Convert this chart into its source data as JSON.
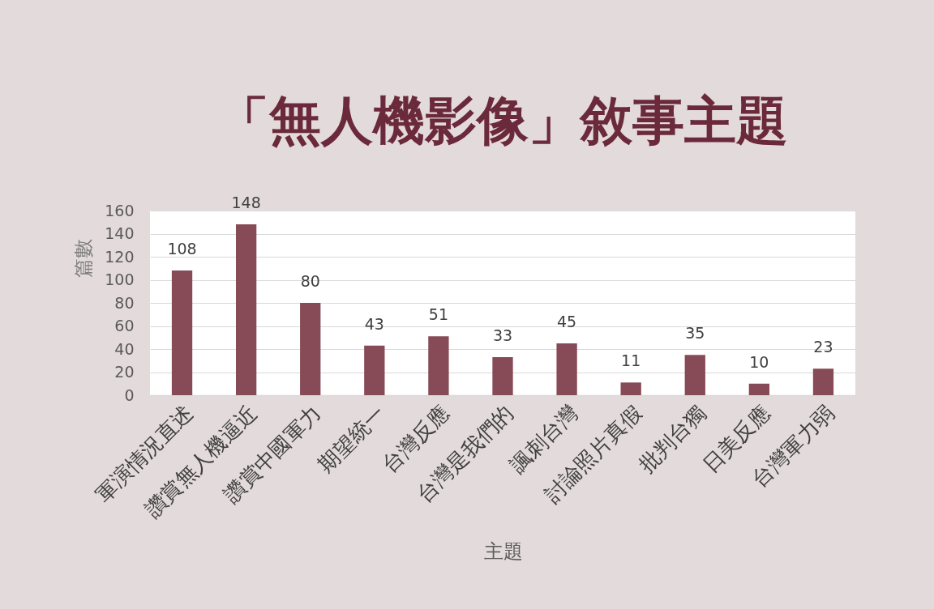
{
  "chart_data": {
    "type": "bar",
    "title": "「無人機影像」敘事主題",
    "xlabel": "主題",
    "ylabel": "篇數",
    "categories": [
      "軍演情況直述",
      "讚賞無人機逼近",
      "讚賞中國軍力",
      "期望統一",
      "台灣反應",
      "台灣是我們的",
      "諷刺台灣",
      "討論照片真假",
      "批判台獨",
      "日美反應",
      "台灣軍力弱"
    ],
    "values": [
      108,
      148,
      80,
      43,
      51,
      33,
      45,
      11,
      35,
      10,
      23
    ],
    "color": "#874b57",
    "ylim": [
      0,
      160
    ],
    "yticks": [
      0,
      20,
      40,
      60,
      80,
      100,
      120,
      140,
      160
    ],
    "grid": "y",
    "data_labels": true
  }
}
